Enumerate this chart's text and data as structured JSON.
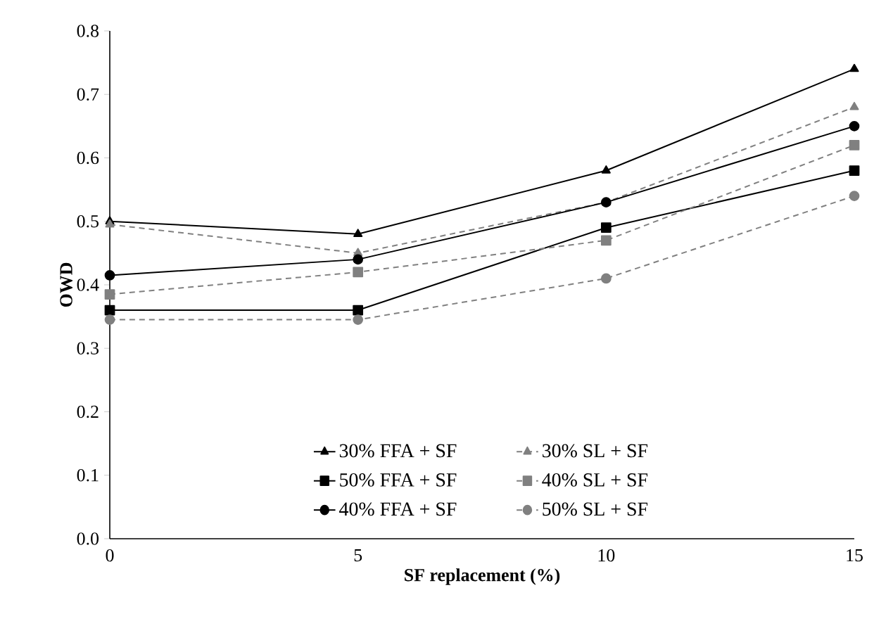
{
  "chart_data": {
    "type": "line",
    "xlabel": "SF replacement (%)",
    "ylabel": "OWD",
    "x": [
      0,
      5,
      10,
      15
    ],
    "xlim": [
      0,
      15
    ],
    "xticks": [
      0,
      5,
      10,
      15
    ],
    "ylim": [
      0,
      0.8
    ],
    "yticks": [
      {
        "value": 0,
        "label": "0.0"
      },
      0.1,
      0.2,
      0.3,
      0.4,
      0.5,
      0.6,
      0.7,
      0.8
    ],
    "grid": false,
    "legend": "bottom",
    "series": [
      {
        "name": "30% FFA + SF",
        "color": "#000000",
        "marker": "triangle",
        "line_style": "solid",
        "values": [
          0.5,
          0.48,
          0.58,
          0.74
        ]
      },
      {
        "name": "30% SL + SF",
        "color": "#808080",
        "marker": "triangle",
        "line_style": "dashed",
        "values": [
          0.495,
          0.45,
          0.53,
          0.68
        ]
      },
      {
        "name": "50% FFA + SF",
        "color": "#000000",
        "marker": "square",
        "line_style": "solid",
        "values": [
          0.36,
          0.36,
          0.49,
          0.58
        ]
      },
      {
        "name": "40% SL + SF",
        "color": "#808080",
        "marker": "square",
        "line_style": "dashed",
        "values": [
          0.385,
          0.42,
          0.47,
          0.62
        ]
      },
      {
        "name": "40% FFA + SF",
        "color": "#000000",
        "marker": "circle",
        "line_style": "solid",
        "values": [
          0.415,
          0.44,
          0.53,
          0.65
        ]
      },
      {
        "name": "50% SL + SF",
        "color": "#808080",
        "marker": "circle",
        "line_style": "dashed",
        "values": [
          0.345,
          0.345,
          0.41,
          0.54
        ]
      }
    ]
  }
}
